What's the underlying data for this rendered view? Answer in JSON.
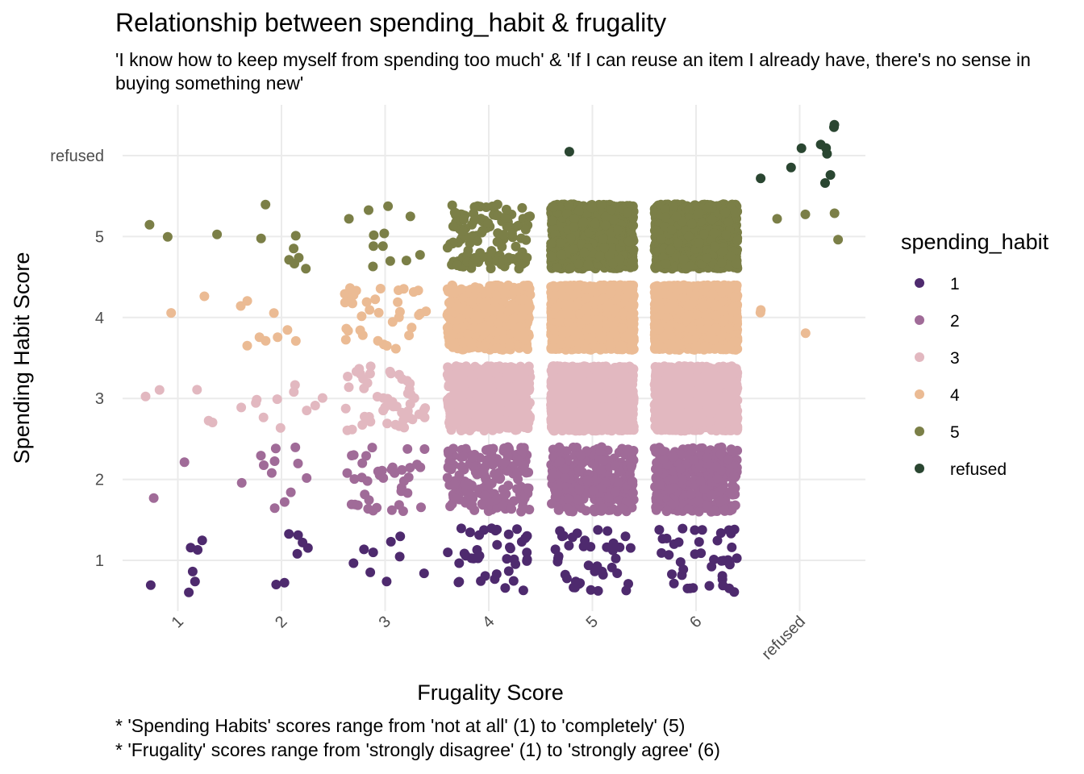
{
  "chart_data": {
    "type": "scatter",
    "title": "Relationship between spending_habit & frugality",
    "subtitle": "'I know how to keep myself from spending too much' & 'If I can reuse an item I already have, there's no sense in buying something new'",
    "xlabel": "Frugality Score",
    "ylabel": "Spending Habit Score",
    "caption": [
      "* 'Spending Habits' scores range from 'not at all' (1) to 'completely' (5)",
      "* 'Frugality' scores range from 'strongly disagree' (1) to 'strongly agree' (6)"
    ],
    "x_categories": [
      "1",
      "2",
      "3",
      "4",
      "5",
      "6",
      "refused"
    ],
    "y_categories": [
      "1",
      "2",
      "3",
      "4",
      "5",
      "refused"
    ],
    "jitter": 0.4,
    "grid": true,
    "legend": {
      "title": "spending_habit",
      "placement": "right",
      "entries": [
        {
          "label": "1",
          "color": "#4e2a6e"
        },
        {
          "label": "2",
          "color": "#a06b98"
        },
        {
          "label": "3",
          "color": "#e2b8c0"
        },
        {
          "label": "4",
          "color": "#ebbb94"
        },
        {
          "label": "5",
          "color": "#7b7f47"
        },
        {
          "label": "refused",
          "color": "#2a4631"
        }
      ]
    },
    "counts": [
      [
        7,
        2,
        5,
        2,
        3,
        0
      ],
      [
        7,
        12,
        11,
        9,
        8,
        0
      ],
      [
        9,
        40,
        50,
        35,
        12,
        0
      ],
      [
        40,
        180,
        600,
        500,
        120,
        0
      ],
      [
        40,
        300,
        1800,
        1800,
        900,
        1
      ],
      [
        40,
        300,
        1800,
        1800,
        1100,
        0
      ],
      [
        0,
        0,
        0,
        3,
        4,
        10
      ]
    ]
  }
}
